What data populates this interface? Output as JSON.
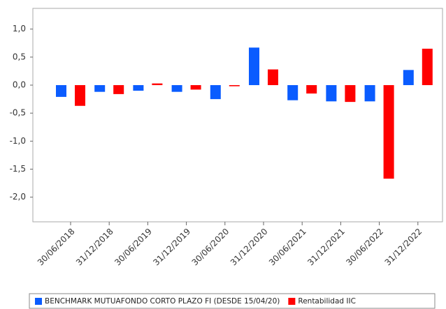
{
  "chart_data": {
    "type": "bar",
    "categories": [
      "30/06/2018",
      "31/12/2018",
      "30/06/2019",
      "31/12/2019",
      "30/06/2020",
      "31/12/2020",
      "30/06/2021",
      "31/12/2021",
      "30/06/2022",
      "31/12/2022"
    ],
    "series": [
      {
        "name": "BENCHMARK MUTUAFONDO CORTO PLAZO FI (DESDE 15/04/20)",
        "color": "#0a5cff",
        "values": [
          -0.21,
          -0.12,
          -0.1,
          -0.12,
          -0.25,
          0.67,
          -0.27,
          -0.29,
          -0.29,
          0.27
        ]
      },
      {
        "name": "Rentabilidad IIC",
        "color": "#ff0000",
        "values": [
          -0.37,
          -0.16,
          0.03,
          -0.08,
          -0.02,
          0.28,
          -0.15,
          -0.3,
          -1.67,
          0.65
        ]
      }
    ],
    "ylim": [
      -2.44,
      1.37
    ],
    "yticks": [
      {
        "value": 1.0,
        "label": "1,0"
      },
      {
        "value": 0.5,
        "label": "0,5"
      },
      {
        "value": 0.0,
        "label": "0,0"
      },
      {
        "value": -0.5,
        "label": "-0,5"
      },
      {
        "value": -1.0,
        "label": "-1,0"
      },
      {
        "value": -1.5,
        "label": "-1,5"
      },
      {
        "value": -2.0,
        "label": "-2,0"
      }
    ],
    "grid": false,
    "legend": "bottom"
  }
}
